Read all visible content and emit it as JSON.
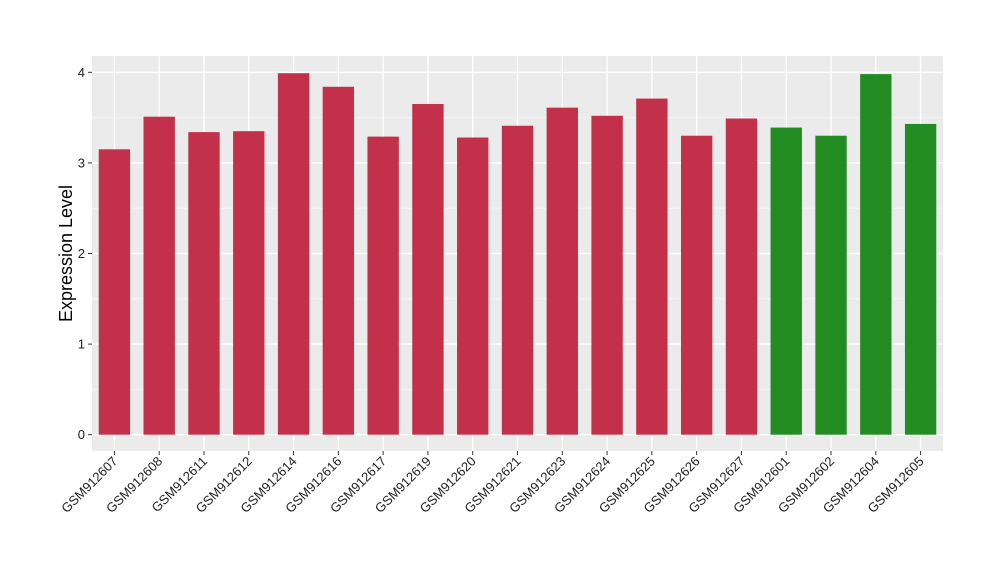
{
  "chart_data": {
    "type": "bar",
    "title": "",
    "xlabel": "",
    "ylabel": "Expression Level",
    "ylim": [
      -0.18,
      4.18
    ],
    "yticks": [
      0,
      1,
      2,
      3,
      4
    ],
    "grid": true,
    "panel_background": "#ebebeb",
    "categories": [
      "GSM912607",
      "GSM912608",
      "GSM912611",
      "GSM912612",
      "GSM912614",
      "GSM912616",
      "GSM912617",
      "GSM912619",
      "GSM912620",
      "GSM912621",
      "GSM912623",
      "GSM912624",
      "GSM912625",
      "GSM912626",
      "GSM912627",
      "GSM912601",
      "GSM912602",
      "GSM912604",
      "GSM912605"
    ],
    "values": [
      3.15,
      3.51,
      3.34,
      3.35,
      3.99,
      3.84,
      3.29,
      3.65,
      3.28,
      3.41,
      3.61,
      3.52,
      3.71,
      3.3,
      3.49,
      3.39,
      3.3,
      3.98,
      3.43
    ],
    "groups": [
      "a",
      "a",
      "a",
      "a",
      "a",
      "a",
      "a",
      "a",
      "a",
      "a",
      "a",
      "a",
      "a",
      "a",
      "a",
      "b",
      "b",
      "b",
      "b"
    ],
    "group_colors": {
      "a": "#c3304a",
      "b": "#228b22"
    },
    "legend": "none"
  }
}
